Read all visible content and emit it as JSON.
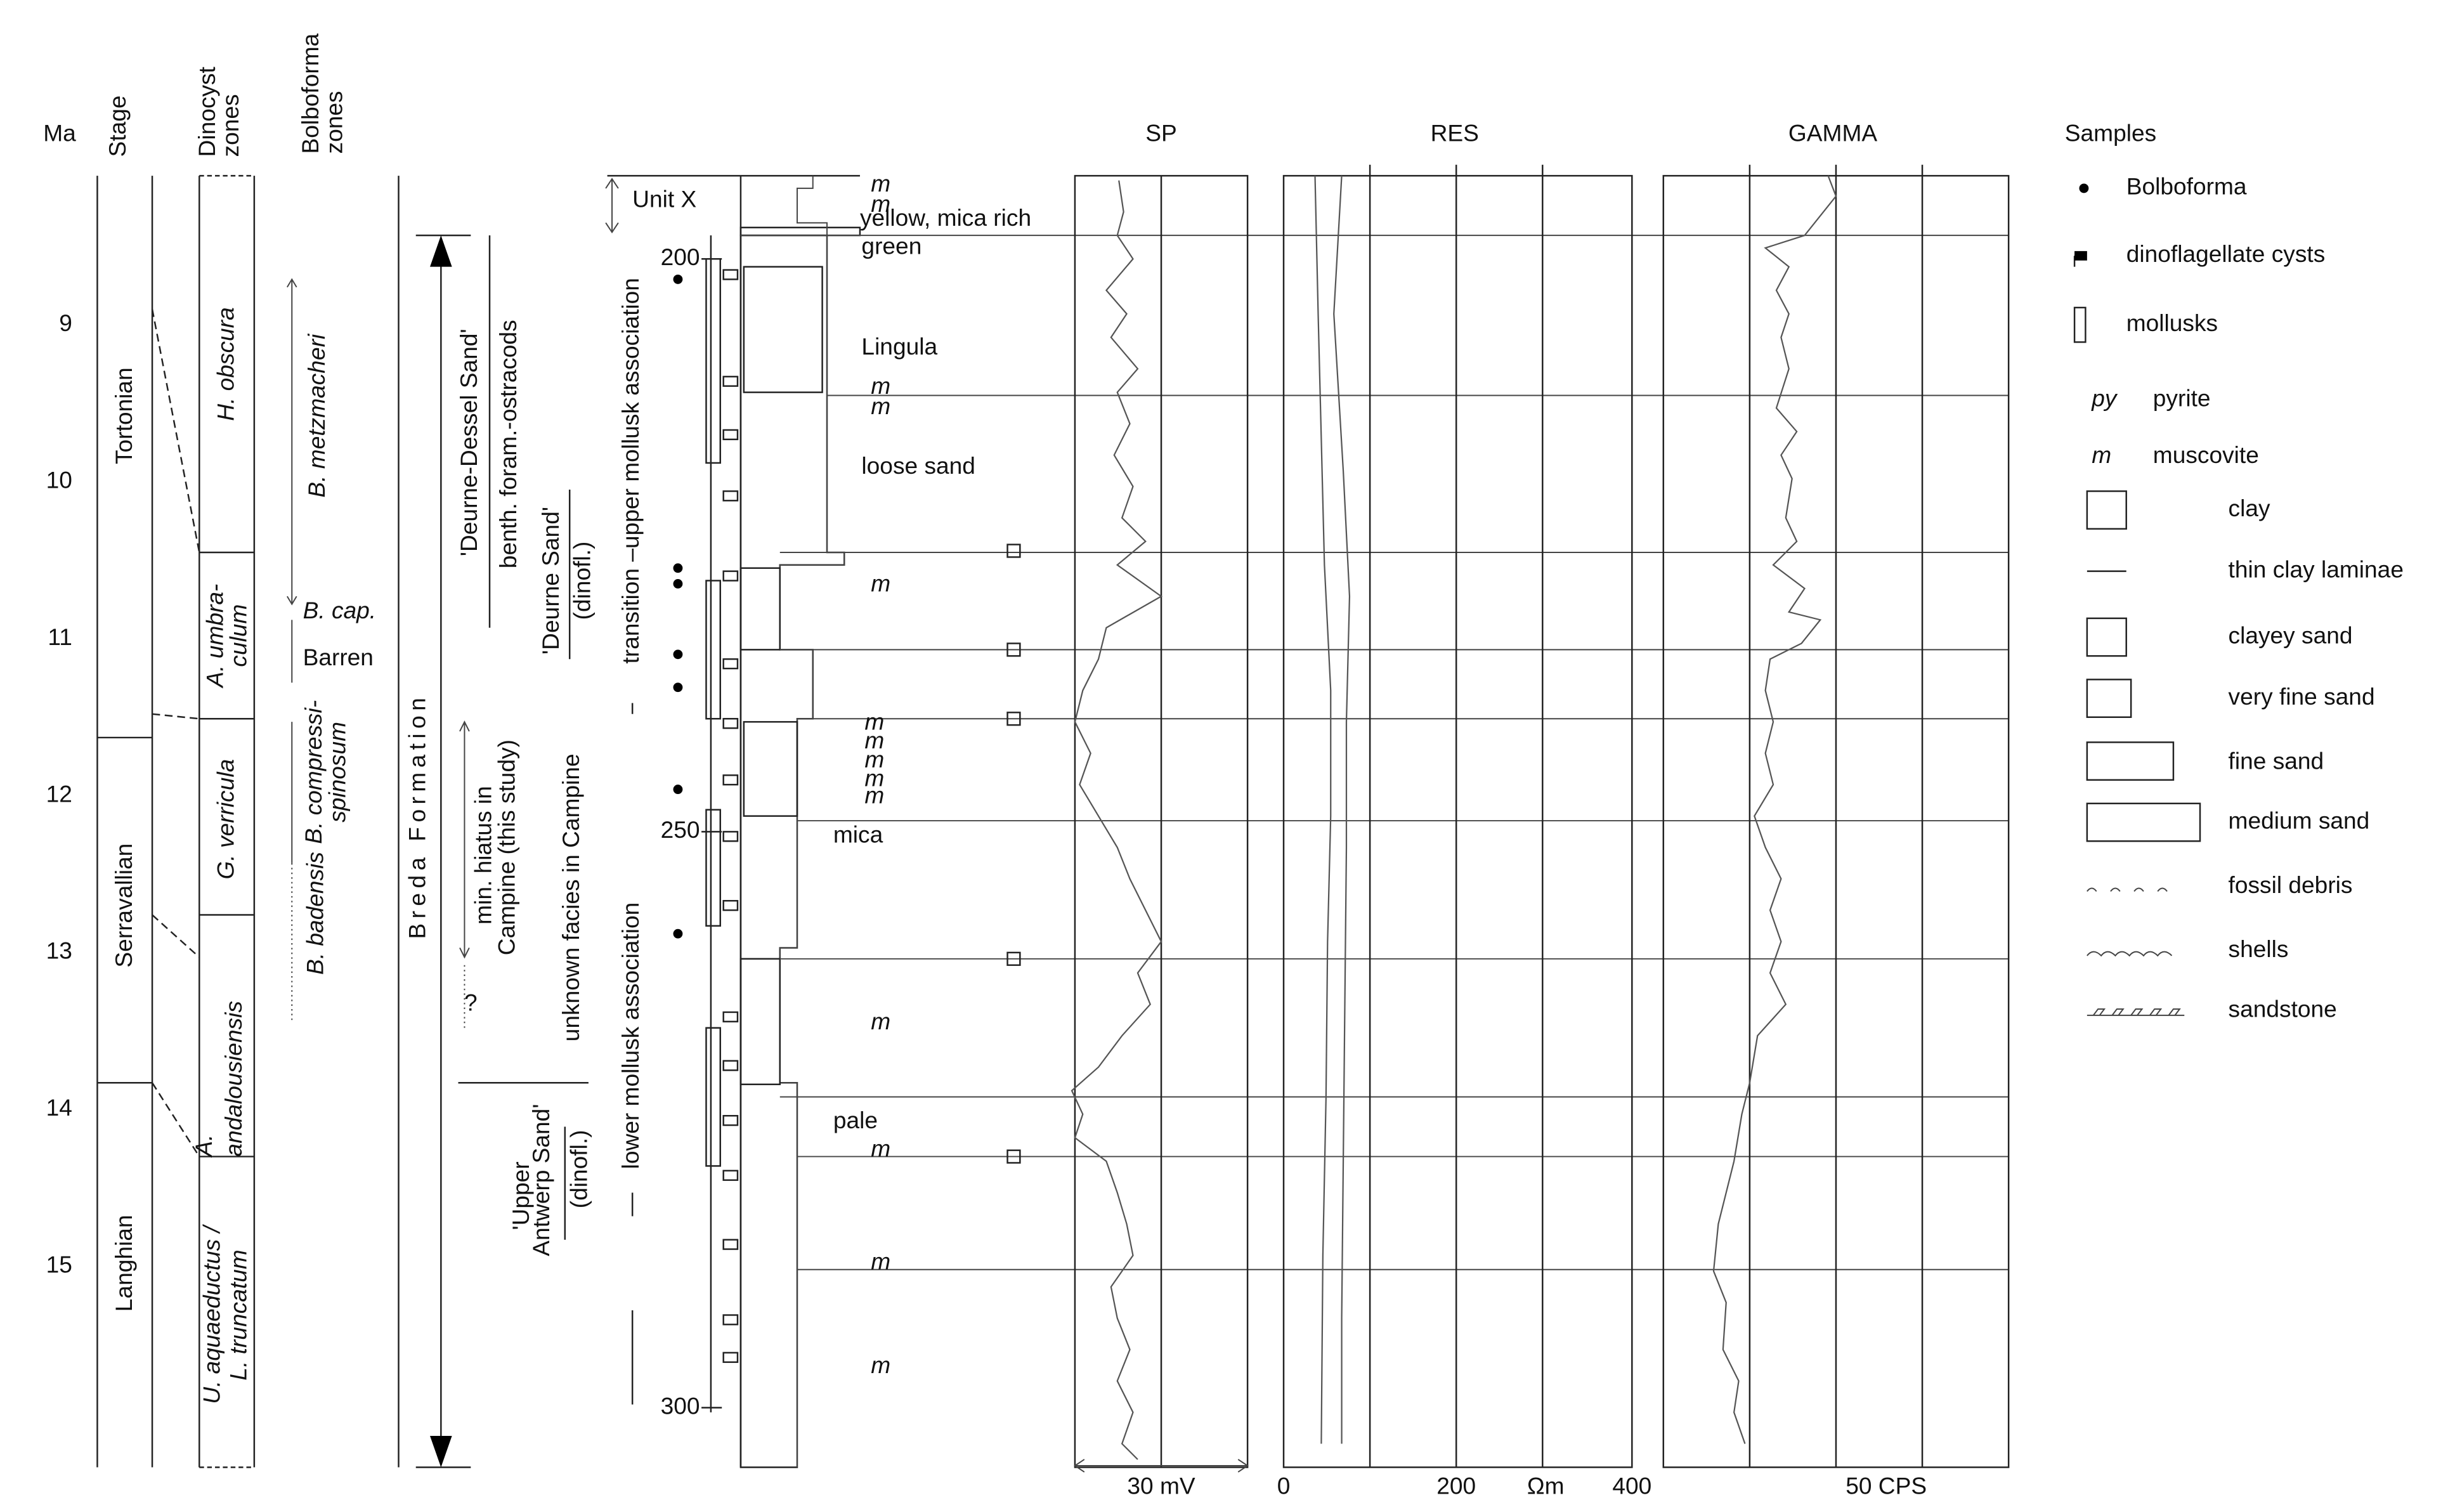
{
  "columns": {
    "ma": "Ma",
    "stage": "Stage",
    "dinocyst_zones": [
      "Dinocyst",
      "zones"
    ],
    "bolboforma_zones": [
      "Bolboforma",
      "zones"
    ],
    "sp": "SP",
    "res": "RES",
    "gamma": "GAMMA",
    "samples": "Samples"
  },
  "ma_ticks": [
    9,
    10,
    11,
    12,
    13,
    14,
    15
  ],
  "stages": [
    "Tortonian",
    "Serravallian",
    "Langhian"
  ],
  "dinocyst_zones": [
    [
      "H. obscura"
    ],
    [
      "A. umbra-",
      "culum"
    ],
    [
      "G. verricula"
    ],
    [
      "A.",
      "andalousiensis"
    ],
    [
      "U. aquaeductus /",
      "L. truncatum"
    ]
  ],
  "bolboforma_zones": [
    [
      "B. metzmacheri"
    ],
    [
      "B. cap."
    ],
    [
      "Barren"
    ],
    [
      "B. compressi-",
      "spinosum"
    ],
    [
      "B. badensis"
    ]
  ],
  "formation": "Breda Formation",
  "units": {
    "deurne_dessel": "'Deurne-Dessel Sand'",
    "benthic": "benth. foram.-ostracods",
    "deurne_sand": "'Deurne Sand'",
    "deurne_dinofl": "(dinofl.)",
    "hiatus": [
      "min. hiatus in",
      "Campine (this study)"
    ],
    "query": "?",
    "unknown": "unknown facies in Campine",
    "upper_antwerp": [
      "'Upper",
      "Antwerp Sand'"
    ],
    "upper_antwerp_dinofl": "(dinofl.)",
    "unit_x": "Unit X",
    "transition": "transition –upper mollusk association",
    "lower": "lower  mollusk association"
  },
  "depth_ticks": [
    200,
    250,
    300
  ],
  "lithology_notes": [
    "m",
    "m",
    "yellow, mica rich",
    "green",
    "Lingula",
    "m",
    "m",
    "loose sand",
    "m",
    "m",
    "m",
    "m",
    "m",
    "m",
    "mica",
    "m",
    "pale",
    "m",
    "m",
    "m"
  ],
  "log_scales": {
    "sp": "30 mV",
    "res": [
      "0",
      "200",
      "Ωm",
      "400"
    ],
    "gamma": "50 CPS"
  },
  "legend": [
    {
      "label": "Bolboforma"
    },
    {
      "label": "dinoflagellate cysts"
    },
    {
      "label": "mollusks"
    },
    {
      "symbol": "py",
      "label": "pyrite"
    },
    {
      "symbol": "m",
      "label": "muscovite"
    },
    {
      "label": "clay"
    },
    {
      "label": "thin clay laminae"
    },
    {
      "label": "clayey sand"
    },
    {
      "label": "very fine sand"
    },
    {
      "label": "fine sand"
    },
    {
      "label": "medium sand"
    },
    {
      "label": "fossil debris"
    },
    {
      "label": "shells"
    },
    {
      "label": "sandstone"
    }
  ]
}
